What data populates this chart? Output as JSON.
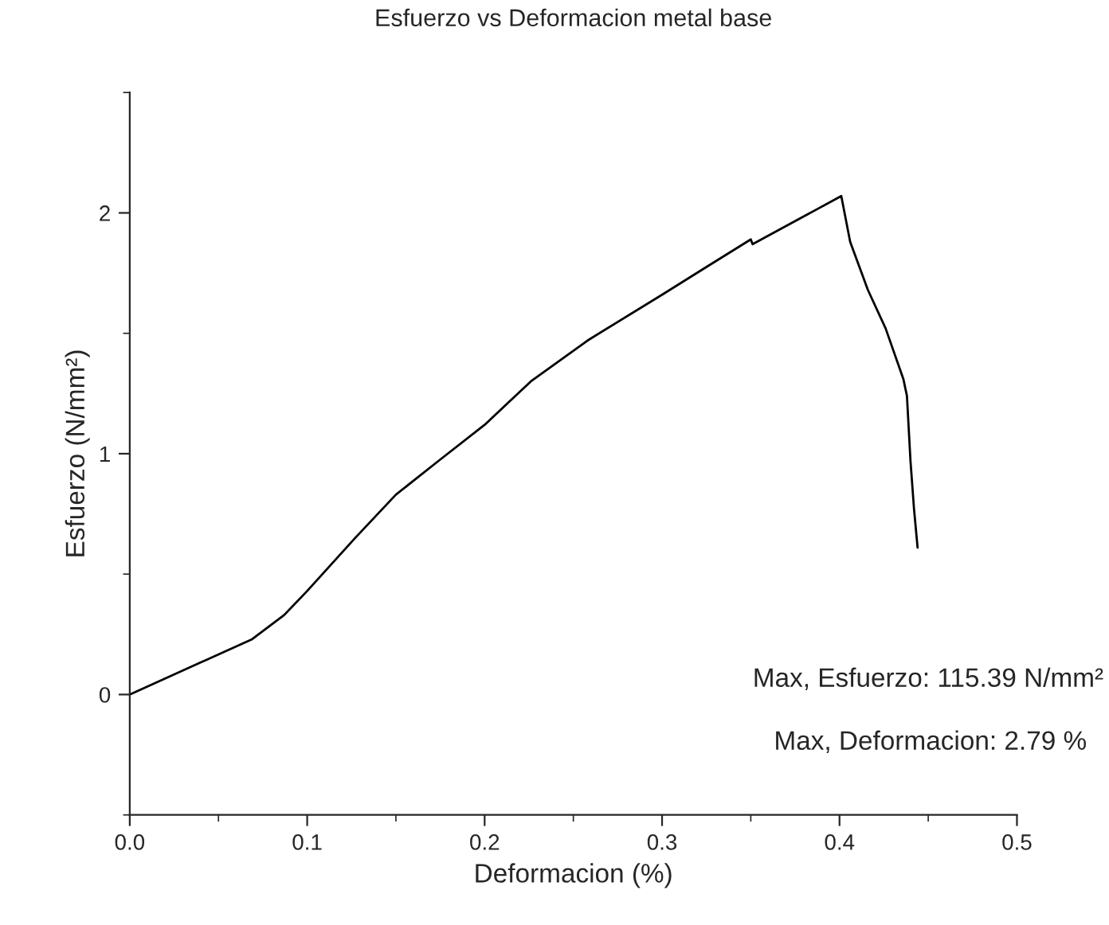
{
  "chart_data": {
    "type": "line",
    "title": "Esfuerzo vs Deformacion metal base",
    "xlabel": "Deformacion (%)",
    "ylabel": "Esfuerzo (N/mm²)",
    "annotations": [
      "Max, Esfuerzo: 115.39 N/mm²",
      "Max, Deformacion: 2.79 %"
    ],
    "x": [
      0,
      0.069,
      0.087,
      0.1,
      0.127,
      0.15,
      0.174,
      0.2,
      0.226,
      0.258,
      0.3,
      0.326,
      0.35,
      0.351,
      0.401,
      0.406,
      0.416,
      0.426,
      0.436,
      0.438,
      0.44,
      0.442,
      0.444
    ],
    "series": [
      {
        "color": "#000000",
        "values": [
          0,
          0.23,
          0.33,
          0.43,
          0.65,
          0.83,
          0.97,
          1.12,
          1.3,
          1.47,
          1.66,
          1.78,
          1.89,
          1.87,
          2.07,
          1.88,
          1.68,
          1.52,
          1.31,
          1.24,
          0.97,
          0.77,
          0.61
        ]
      }
    ],
    "xlim": [
      0,
      0.5
    ],
    "ylim": [
      -0.5,
      2.5
    ],
    "xticks": [
      {
        "value": 0,
        "label": "0.0"
      },
      0.1,
      0.2,
      0.3,
      0.4,
      0.5
    ],
    "yticks": [
      0,
      1,
      2
    ],
    "grid": false,
    "line_style": "solid",
    "marker": "none"
  }
}
